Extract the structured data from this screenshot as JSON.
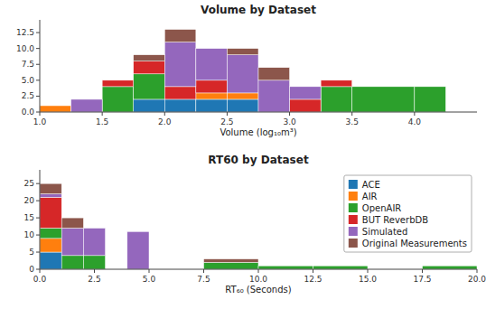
{
  "chart_data": [
    {
      "type": "histogram",
      "title": "Volume by Dataset",
      "x_label": "Volume (log₁₀m³)",
      "bins": [
        1.0,
        1.25,
        1.5,
        1.75,
        2.0,
        2.25,
        2.5,
        2.75,
        3.0,
        3.25,
        3.5,
        4.0,
        4.25
      ],
      "stacked": true,
      "series": [
        {
          "color": "#1f77b4",
          "values": [
            0,
            0,
            0,
            2,
            2,
            2,
            2,
            0,
            0,
            0,
            0,
            0
          ]
        },
        {
          "color": "#ff7f0e",
          "values": [
            1,
            0,
            0,
            0,
            0,
            1,
            1,
            0,
            0,
            0,
            0,
            0
          ]
        },
        {
          "color": "#2ca02c",
          "values": [
            0,
            0,
            4,
            4,
            0,
            0,
            0,
            0,
            0,
            4,
            4,
            4
          ]
        },
        {
          "color": "#d62728",
          "values": [
            0,
            0,
            1,
            2,
            2,
            2,
            0,
            0,
            2,
            1,
            0,
            0
          ]
        },
        {
          "color": "#9467bd",
          "values": [
            0,
            2,
            0,
            0,
            7,
            5,
            6,
            5,
            2,
            0,
            0,
            0
          ]
        },
        {
          "color": "#8c564b",
          "values": [
            0,
            0,
            0,
            1,
            2,
            0,
            1,
            2,
            0,
            0,
            0,
            0
          ]
        }
      ],
      "xlim": [
        1.0,
        4.5
      ],
      "xticks": [
        {
          "value": 1.0,
          "label": "1.0"
        },
        1.5,
        {
          "value": 2.0,
          "label": "2.0"
        },
        2.5,
        {
          "value": 3.0,
          "label": "3.0"
        },
        3.5,
        {
          "value": 4.0,
          "label": "4.0"
        }
      ],
      "ylim": [
        0,
        14.5
      ],
      "yticks": [
        {
          "value": 0.0,
          "label": "0.0"
        },
        2.5,
        {
          "value": 5.0,
          "label": "5.0"
        },
        7.5,
        {
          "value": 10.0,
          "label": "10.0"
        },
        12.5
      ]
    },
    {
      "type": "histogram",
      "title": "RT60 by Dataset",
      "x_label": "RT₆₀ (Seconds)",
      "bins": [
        0,
        1,
        2,
        3,
        4,
        5,
        7.5,
        10,
        12.5,
        15,
        17.5,
        20
      ],
      "stacked": true,
      "series": [
        {
          "name": "ACE",
          "color": "#1f77b4",
          "values": [
            5,
            0,
            0,
            0,
            0,
            0,
            0,
            0,
            0,
            0,
            0
          ]
        },
        {
          "name": "AIR",
          "color": "#ff7f0e",
          "values": [
            4,
            0,
            0,
            0,
            0,
            0,
            0,
            0,
            0,
            0,
            0
          ]
        },
        {
          "name": "OpenAIR",
          "color": "#2ca02c",
          "values": [
            3,
            4,
            4,
            0,
            0,
            0,
            2,
            1,
            1,
            0,
            1
          ]
        },
        {
          "name": "BUT ReverbDB",
          "color": "#d62728",
          "values": [
            9,
            0,
            0,
            0,
            0,
            0,
            0,
            0,
            0,
            0,
            0
          ]
        },
        {
          "name": "Simulated",
          "color": "#9467bd",
          "values": [
            1,
            8,
            8,
            0,
            11,
            0,
            0,
            0,
            0,
            0,
            0
          ]
        },
        {
          "name": "Original Measurements",
          "color": "#8c564b",
          "values": [
            3,
            3,
            0,
            0,
            0,
            0,
            1,
            0,
            0,
            0,
            0
          ]
        }
      ],
      "xlim": [
        0.0,
        20.0
      ],
      "xticks": [
        {
          "value": 0.0,
          "label": "0.0"
        },
        2.5,
        {
          "value": 5.0,
          "label": "5.0"
        },
        7.5,
        {
          "value": 10.0,
          "label": "10.0"
        },
        12.5,
        {
          "value": 15.0,
          "label": "15.0"
        },
        17.5,
        {
          "value": 20.0,
          "label": "20.0"
        }
      ],
      "ylim": [
        0,
        29
      ],
      "yticks": [
        0,
        5,
        10,
        15,
        20,
        25
      ],
      "legend": "upper right"
    }
  ]
}
